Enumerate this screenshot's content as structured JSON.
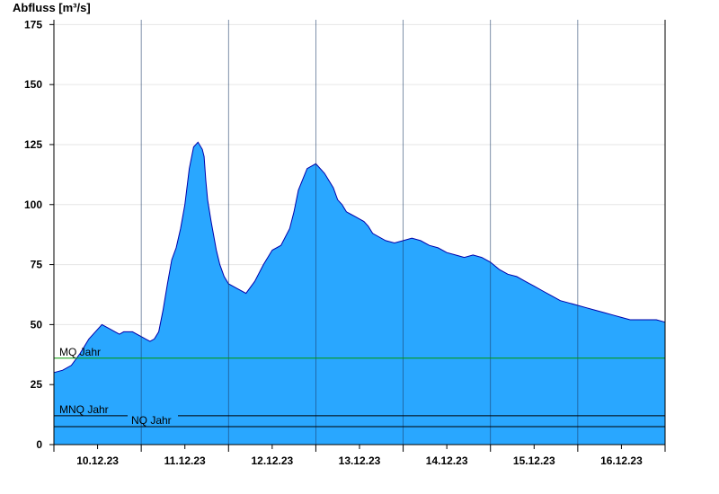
{
  "chart_data": {
    "type": "area",
    "ylabel": "Abfluss [m³/s]",
    "xlabel": "",
    "ylim": [
      0,
      177
    ],
    "yticks": [
      0,
      25,
      50,
      75,
      100,
      125,
      150,
      175
    ],
    "grid": true,
    "x_range_days": [
      0,
      7
    ],
    "x_tick_labels": [
      "10.12.23",
      "11.12.23",
      "12.12.23",
      "13.12.23",
      "14.12.23",
      "15.12.23",
      "16.12.23"
    ],
    "x_tick_label_positions_days": [
      0.5,
      1.5,
      2.5,
      3.5,
      4.5,
      5.5,
      6.5
    ],
    "day_gridlines_days": [
      1,
      2,
      3,
      4,
      5,
      6
    ],
    "series": [
      {
        "name": "",
        "color": "#29a7ff",
        "line_color": "#0000aa",
        "x": [
          0,
          0.1,
          0.2,
          0.3,
          0.4,
          0.5,
          0.55,
          0.6,
          0.65,
          0.7,
          0.75,
          0.8,
          0.85,
          0.9,
          1.0,
          1.05,
          1.1,
          1.15,
          1.2,
          1.25,
          1.3,
          1.35,
          1.4,
          1.45,
          1.5,
          1.55,
          1.6,
          1.65,
          1.7,
          1.72,
          1.74,
          1.76,
          1.8,
          1.83,
          1.86,
          1.9,
          1.95,
          2.0,
          2.1,
          2.2,
          2.3,
          2.4,
          2.5,
          2.6,
          2.7,
          2.75,
          2.8,
          2.9,
          3.0,
          3.1,
          3.2,
          3.25,
          3.3,
          3.35,
          3.4,
          3.45,
          3.5,
          3.55,
          3.6,
          3.65,
          3.7,
          3.8,
          3.9,
          4.0,
          4.1,
          4.2,
          4.3,
          4.4,
          4.5,
          4.6,
          4.7,
          4.8,
          4.9,
          5.0,
          5.1,
          5.2,
          5.3,
          5.4,
          5.5,
          5.6,
          5.7,
          5.8,
          5.9,
          6.0,
          6.1,
          6.2,
          6.3,
          6.4,
          6.5,
          6.6,
          6.7,
          6.8,
          6.9,
          7.0
        ],
        "y": [
          30,
          31,
          33,
          38,
          44,
          48,
          50,
          49,
          48,
          47,
          46,
          47,
          47,
          47,
          45,
          44,
          43,
          44,
          47,
          56,
          67,
          77,
          82,
          90,
          100,
          115,
          124,
          126,
          123,
          120,
          110,
          102,
          93,
          87,
          81,
          75,
          70,
          67,
          65,
          63,
          68,
          75,
          81,
          83,
          90,
          97,
          106,
          115,
          117,
          113,
          107,
          102,
          100,
          97,
          96,
          95,
          94,
          93,
          91,
          88,
          87,
          85,
          84,
          85,
          86,
          85,
          83,
          82,
          80,
          79,
          78,
          79,
          78,
          76,
          73,
          71,
          70,
          68,
          66,
          64,
          62,
          60,
          59,
          58,
          57,
          56,
          55,
          54,
          53,
          52,
          52,
          52,
          52,
          51
        ]
      }
    ],
    "reference_lines": [
      {
        "label": "MQ Jahr",
        "value": 36,
        "color": "#009900"
      },
      {
        "label": "MNQ Jahr",
        "value": 12,
        "color": "#000000"
      },
      {
        "label": "NQ Jahr",
        "value": 7.5,
        "color": "#000000"
      }
    ]
  }
}
